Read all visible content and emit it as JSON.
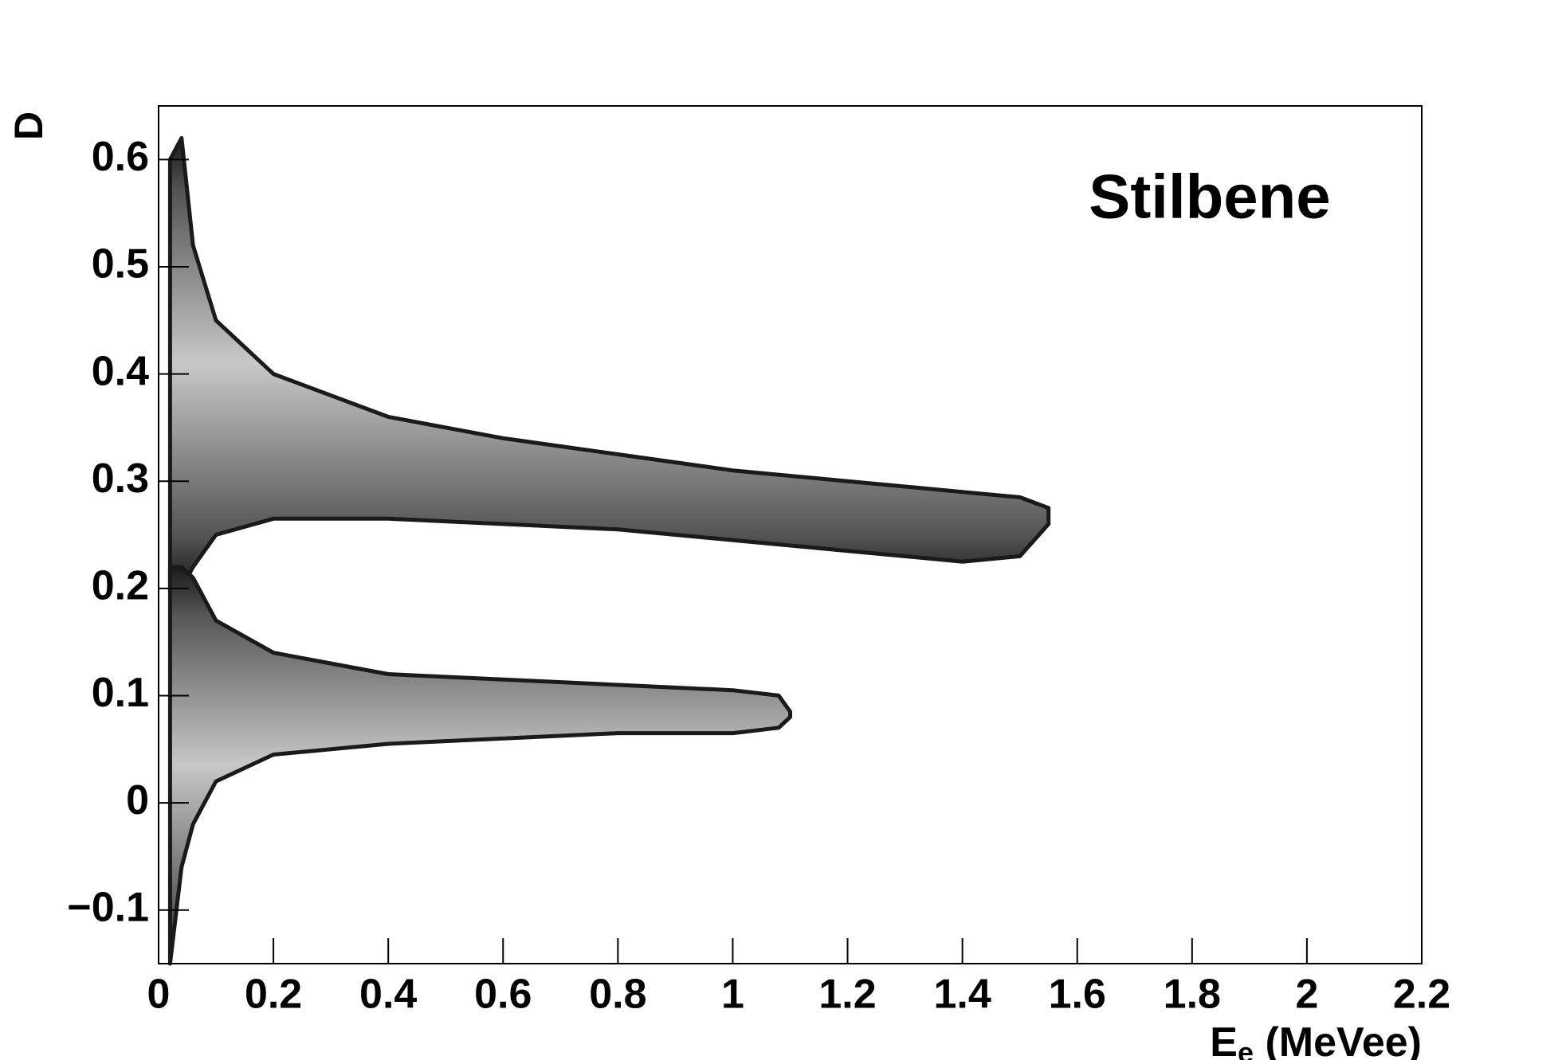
{
  "chart_data": {
    "type": "density-bands",
    "annotation": "Stilbene",
    "ylabel": "D",
    "xlabel_parts": [
      "E",
      "e",
      " (MeVee)"
    ],
    "xlim": [
      0,
      2.2
    ],
    "ylim": [
      -0.15,
      0.65
    ],
    "xticks": [
      0,
      0.2,
      0.4,
      0.6,
      0.8,
      1,
      1.2,
      1.4,
      1.6,
      1.8,
      2,
      2.2
    ],
    "yticks": [
      {
        "value": -0.1,
        "label": "−0.1"
      },
      0,
      0.1,
      0.2,
      0.3,
      0.4,
      0.5,
      0.6
    ],
    "series": [
      {
        "color": "#c8c8c8",
        "edge_color": "#1a1a1a",
        "x": [
          0.02,
          0.04,
          0.06,
          0.1,
          0.2,
          0.4,
          0.6,
          0.8,
          1.0,
          1.2,
          1.4,
          1.5,
          1.55
        ],
        "upper": [
          0.6,
          0.62,
          0.52,
          0.45,
          0.4,
          0.36,
          0.34,
          0.325,
          0.31,
          0.3,
          0.29,
          0.285,
          0.275
        ],
        "lower": [
          0.2,
          0.2,
          0.22,
          0.25,
          0.265,
          0.265,
          0.26,
          0.255,
          0.245,
          0.235,
          0.225,
          0.23,
          0.26
        ]
      },
      {
        "color": "#c8c8c8",
        "edge_color": "#1a1a1a",
        "x": [
          0.02,
          0.04,
          0.06,
          0.1,
          0.2,
          0.4,
          0.6,
          0.8,
          1.0,
          1.08,
          1.1
        ],
        "upper": [
          0.22,
          0.22,
          0.21,
          0.17,
          0.14,
          0.12,
          0.115,
          0.11,
          0.105,
          0.1,
          0.085
        ],
        "lower": [
          -0.15,
          -0.06,
          -0.02,
          0.02,
          0.045,
          0.055,
          0.06,
          0.065,
          0.065,
          0.07,
          0.08
        ]
      }
    ]
  }
}
